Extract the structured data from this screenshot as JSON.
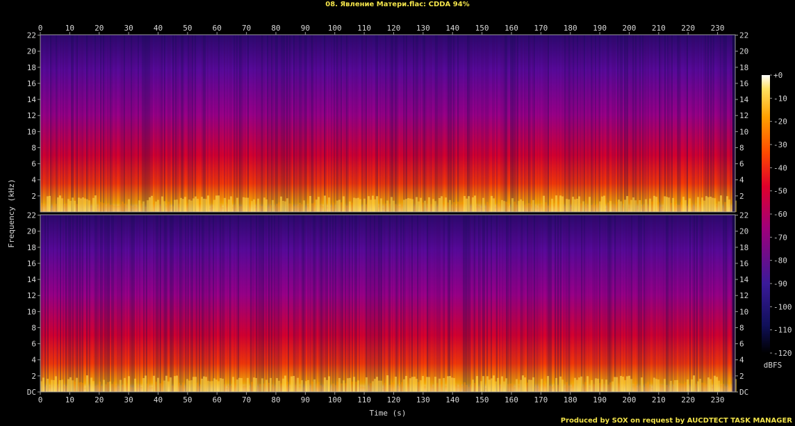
{
  "title": "08. Явление Матери.flac: CDDA 94%",
  "footer": "Produced by SOX on request by AUCDTECT TASK MANAGER",
  "colors": {
    "title": "#f2e34a",
    "background": "#000000",
    "frame": "#9a9a9a"
  },
  "chart_data": {
    "type": "heatmap",
    "title": "08. Явление Матери.flac: CDDA 94%",
    "xlabel": "Time (s)",
    "ylabel": "Frequency (kHz)",
    "xlim": [
      0,
      236
    ],
    "ylim": [
      0,
      22.05
    ],
    "x_ticks": [
      "0",
      "10",
      "20",
      "30",
      "40",
      "50",
      "60",
      "70",
      "80",
      "90",
      "100",
      "110",
      "120",
      "130",
      "140",
      "150",
      "160",
      "170",
      "180",
      "190",
      "200",
      "210",
      "220",
      "230"
    ],
    "y_ticks": [
      "DC",
      "2",
      "4",
      "6",
      "8",
      "10",
      "12",
      "14",
      "16",
      "18",
      "20",
      "22"
    ],
    "channels": [
      "top",
      "bottom"
    ],
    "colorbar": {
      "label": "dBFS",
      "ticks": [
        "+0",
        "-10",
        "-20",
        "-30",
        "-40",
        "-50",
        "-60",
        "-70",
        "-80",
        "-90",
        "-100",
        "-110",
        "-120"
      ],
      "range": [
        -120,
        0
      ]
    },
    "top_channel_y_labels": [
      "22",
      "20",
      "18",
      "16",
      "14",
      "12",
      "10",
      "8",
      "6",
      "4",
      "2"
    ]
  }
}
